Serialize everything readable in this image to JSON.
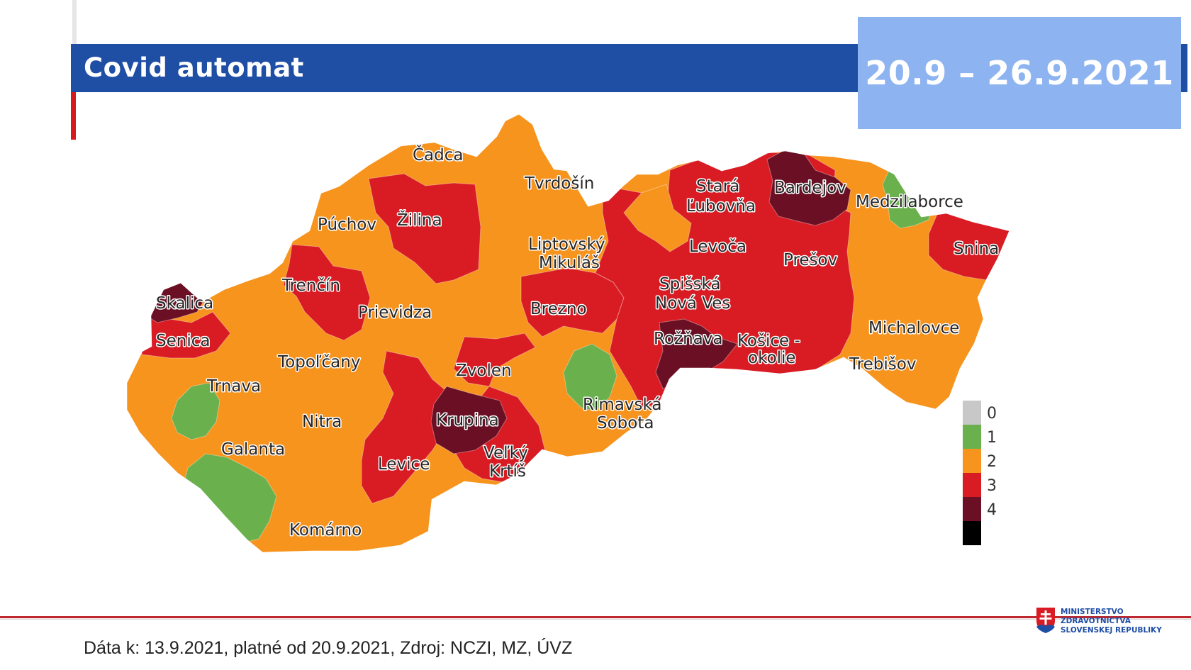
{
  "header": {
    "title": "Covid automat",
    "date_range": "20.9 – 26.9.2021"
  },
  "map": {
    "colors": {
      "0": "#c8c8c8",
      "1": "#6ab04c",
      "2": "#f7941d",
      "3": "#d91c24",
      "4": "#6b0f24",
      "unknown": "#000000"
    },
    "labels": [
      {
        "id": "cadca",
        "text": "Čadca",
        "level": 2
      },
      {
        "id": "tvrdosin",
        "text": "Tvrdošín",
        "level": 2
      },
      {
        "id": "zilina",
        "text": "Žilina",
        "level": 3
      },
      {
        "id": "puchov",
        "text": "Púchov",
        "level": 2
      },
      {
        "id": "stara-lubovna-1",
        "text": "Stará",
        "level": 3
      },
      {
        "id": "stara-lubovna-2",
        "text": "Ľubovňa",
        "level": 3
      },
      {
        "id": "bardejov",
        "text": "Bardejov",
        "level": 4
      },
      {
        "id": "medzilaborce",
        "text": "Medzilaborce",
        "level": 1
      },
      {
        "id": "liptovsky-1",
        "text": "Liptovský",
        "level": 2
      },
      {
        "id": "liptovsky-2",
        "text": "Mikuláš",
        "level": 2
      },
      {
        "id": "levoca",
        "text": "Levoča",
        "level": 3
      },
      {
        "id": "presov",
        "text": "Prešov",
        "level": 3
      },
      {
        "id": "snina",
        "text": "Snina",
        "level": 3
      },
      {
        "id": "trencin",
        "text": "Trenčín",
        "level": 3
      },
      {
        "id": "skalica",
        "text": "Skalica",
        "level": 4
      },
      {
        "id": "prievidza",
        "text": "Prievidza",
        "level": 2
      },
      {
        "id": "brezno",
        "text": "Brezno",
        "level": 3
      },
      {
        "id": "spisska-1",
        "text": "Spišská",
        "level": 3
      },
      {
        "id": "spisska-2",
        "text": "Nová Ves",
        "level": 3
      },
      {
        "id": "senica",
        "text": "Senica",
        "level": 3
      },
      {
        "id": "roznava",
        "text": "Rožňava",
        "level": 4
      },
      {
        "id": "kosice-1",
        "text": "Košice -",
        "level": 3
      },
      {
        "id": "kosice-2",
        "text": "okolie",
        "level": 3
      },
      {
        "id": "michalovce",
        "text": "Michalovce",
        "level": 2
      },
      {
        "id": "topolcany",
        "text": "Topoľčany",
        "level": 2
      },
      {
        "id": "zvolen",
        "text": "Zvolen",
        "level": 3
      },
      {
        "id": "trebisov",
        "text": "Trebišov",
        "level": 2
      },
      {
        "id": "trnava",
        "text": "Trnava",
        "level": 2
      },
      {
        "id": "rimavska-1",
        "text": "Rimavská",
        "level": 2
      },
      {
        "id": "rimavska-2",
        "text": "Sobota",
        "level": 2
      },
      {
        "id": "nitra",
        "text": "Nitra",
        "level": 2
      },
      {
        "id": "krupina",
        "text": "Krupina",
        "level": 4
      },
      {
        "id": "galanta",
        "text": "Galanta",
        "level": 2
      },
      {
        "id": "velky-krtis-1",
        "text": "Veľký",
        "level": 3
      },
      {
        "id": "velky-krtis-2",
        "text": "Krtíš",
        "level": 3
      },
      {
        "id": "levice",
        "text": "Levice",
        "level": 3
      },
      {
        "id": "komarno",
        "text": "Komárno",
        "level": 2
      }
    ]
  },
  "legend": {
    "items": [
      {
        "label": "0",
        "color": "#c8c8c8"
      },
      {
        "label": "1",
        "color": "#6ab04c"
      },
      {
        "label": "2",
        "color": "#f7941d"
      },
      {
        "label": "3",
        "color": "#d91c24"
      },
      {
        "label": "4",
        "color": "#6b0f24"
      },
      {
        "label": "",
        "color": "#000000"
      }
    ]
  },
  "footer": {
    "source": "Dáta k: 13.9.2021, platné od 20.9.2021, Zdroj: NCZI, MZ, ÚVZ"
  },
  "logo": {
    "line1": "MINISTERSTVO",
    "line2": "ZDRAVOTNÍCTVA",
    "line3": "SLOVENSKEJ REPUBLIKY"
  }
}
